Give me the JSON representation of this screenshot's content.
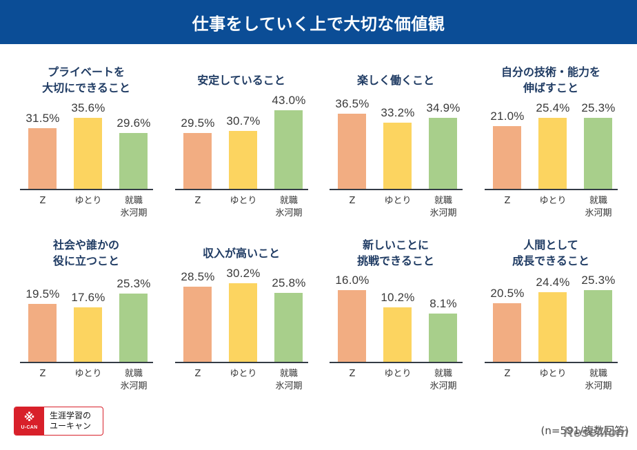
{
  "header": {
    "title": "仕事をしていく上で大切な価値観"
  },
  "colors": {
    "header_bg": "#0b4d96",
    "series": [
      "#f2ad82",
      "#fcd460",
      "#a8cf8b"
    ]
  },
  "footer": {
    "logo_mark": "U-CAN",
    "logo_glyph": "※",
    "logo_text": "生涯学習の\nユーキャン",
    "note": "(n=591/複数回答)",
    "watermark": "ReseMom"
  },
  "chart_data": [
    {
      "type": "bar",
      "title": "プライベートを\n大切にできること",
      "categories": [
        "Z",
        "ゆとり",
        "就職\n氷河期"
      ],
      "values": [
        31.5,
        35.6,
        29.6
      ],
      "labels": [
        "31.5%",
        "35.6%",
        "29.6%"
      ],
      "ylim": [
        7.5,
        48.4
      ]
    },
    {
      "type": "bar",
      "title": "安定していること",
      "categories": [
        "Z",
        "ゆとり",
        "就職\n氷河期"
      ],
      "values": [
        29.5,
        30.7,
        43.0
      ],
      "labels": [
        "29.5%",
        "30.7%",
        "43.0%"
      ],
      "ylim": [
        -3.7,
        57.8
      ]
    },
    {
      "type": "bar",
      "title": "楽しく働くこと",
      "categories": [
        "Z",
        "ゆとり",
        "就職\n氷河期"
      ],
      "values": [
        36.5,
        33.2,
        34.9
      ],
      "labels": [
        "36.5%",
        "33.2%",
        "34.9%"
      ],
      "ylim": [
        8.8,
        46.9
      ]
    },
    {
      "type": "bar",
      "title": "自分の技術・能力を\n伸ばすこと",
      "categories": [
        "Z",
        "ゆとり",
        "就職\n氷河期"
      ],
      "values": [
        21.0,
        25.4,
        25.3
      ],
      "labels": [
        "21.0%",
        "25.4%",
        "25.3%"
      ],
      "ylim": [
        -12.3,
        42.6
      ]
    },
    {
      "type": "bar",
      "title": "社会や誰かの\n役に立つこと",
      "categories": [
        "Z",
        "ゆとり",
        "就職\n氷河期"
      ],
      "values": [
        19.5,
        17.6,
        25.3
      ],
      "labels": [
        "19.5%",
        "17.6%",
        "25.3%"
      ],
      "ylim": [
        -12.8,
        44.9
      ]
    },
    {
      "type": "bar",
      "title": "収入が高いこと",
      "categories": [
        "Z",
        "ゆとり",
        "就職\n氷河期"
      ],
      "values": [
        28.5,
        30.2,
        25.8
      ],
      "labels": [
        "28.5%",
        "30.2%",
        "25.8%"
      ],
      "ylim": [
        -5.7,
        41.5
      ]
    },
    {
      "type": "bar",
      "title": "新しいことに\n挑戦できること",
      "categories": [
        "Z",
        "ゆとり",
        "就職\n氷河期"
      ],
      "values": [
        16.0,
        10.2,
        8.1
      ],
      "labels": [
        "16.0%",
        "10.2%",
        "8.1%"
      ],
      "ylim": [
        -8.1,
        26.7
      ]
    },
    {
      "type": "bar",
      "title": "人間として\n成長できること",
      "categories": [
        "Z",
        "ゆとり",
        "就職\n氷河期"
      ],
      "values": [
        20.5,
        24.4,
        25.3
      ],
      "labels": [
        "20.5%",
        "24.4%",
        "25.3%"
      ],
      "ylim": [
        -1.0,
        36.9
      ]
    }
  ]
}
